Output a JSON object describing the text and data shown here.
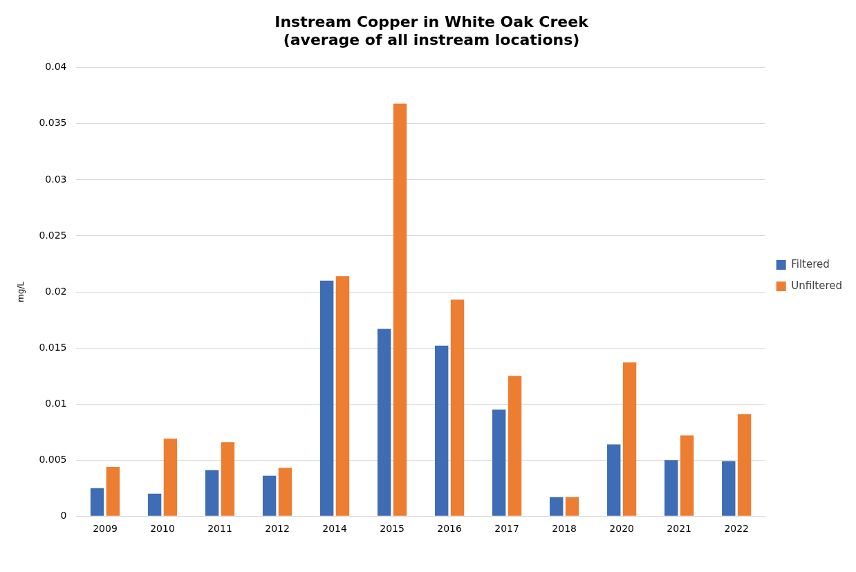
{
  "chart_data": {
    "type": "bar",
    "title": "Instream Copper in White Oak Creek\n(average of all instream locations)",
    "ylabel": "mg/L",
    "categories": [
      "2009",
      "2010",
      "2011",
      "2012",
      "2014",
      "2015",
      "2016",
      "2017",
      "2018",
      "2020",
      "2021",
      "2022"
    ],
    "series": [
      {
        "name": "Filtered",
        "color": "#3e6db5",
        "values": [
          0.0025,
          0.002,
          0.0041,
          0.0036,
          0.021,
          0.0167,
          0.0152,
          0.0095,
          0.0017,
          0.0064,
          0.005,
          0.0049
        ]
      },
      {
        "name": "Unfiltered",
        "color": "#ed7d31",
        "values": [
          0.0044,
          0.0069,
          0.0066,
          0.0043,
          0.0214,
          0.0368,
          0.0193,
          0.0125,
          0.0017,
          0.0137,
          0.0072,
          0.0091
        ]
      }
    ],
    "ylim": [
      0,
      0.04
    ],
    "yticks": [
      0,
      0.005,
      0.01,
      0.015,
      0.02,
      0.025,
      0.03,
      0.035,
      0.04
    ],
    "grid": "y",
    "legend": "right"
  }
}
